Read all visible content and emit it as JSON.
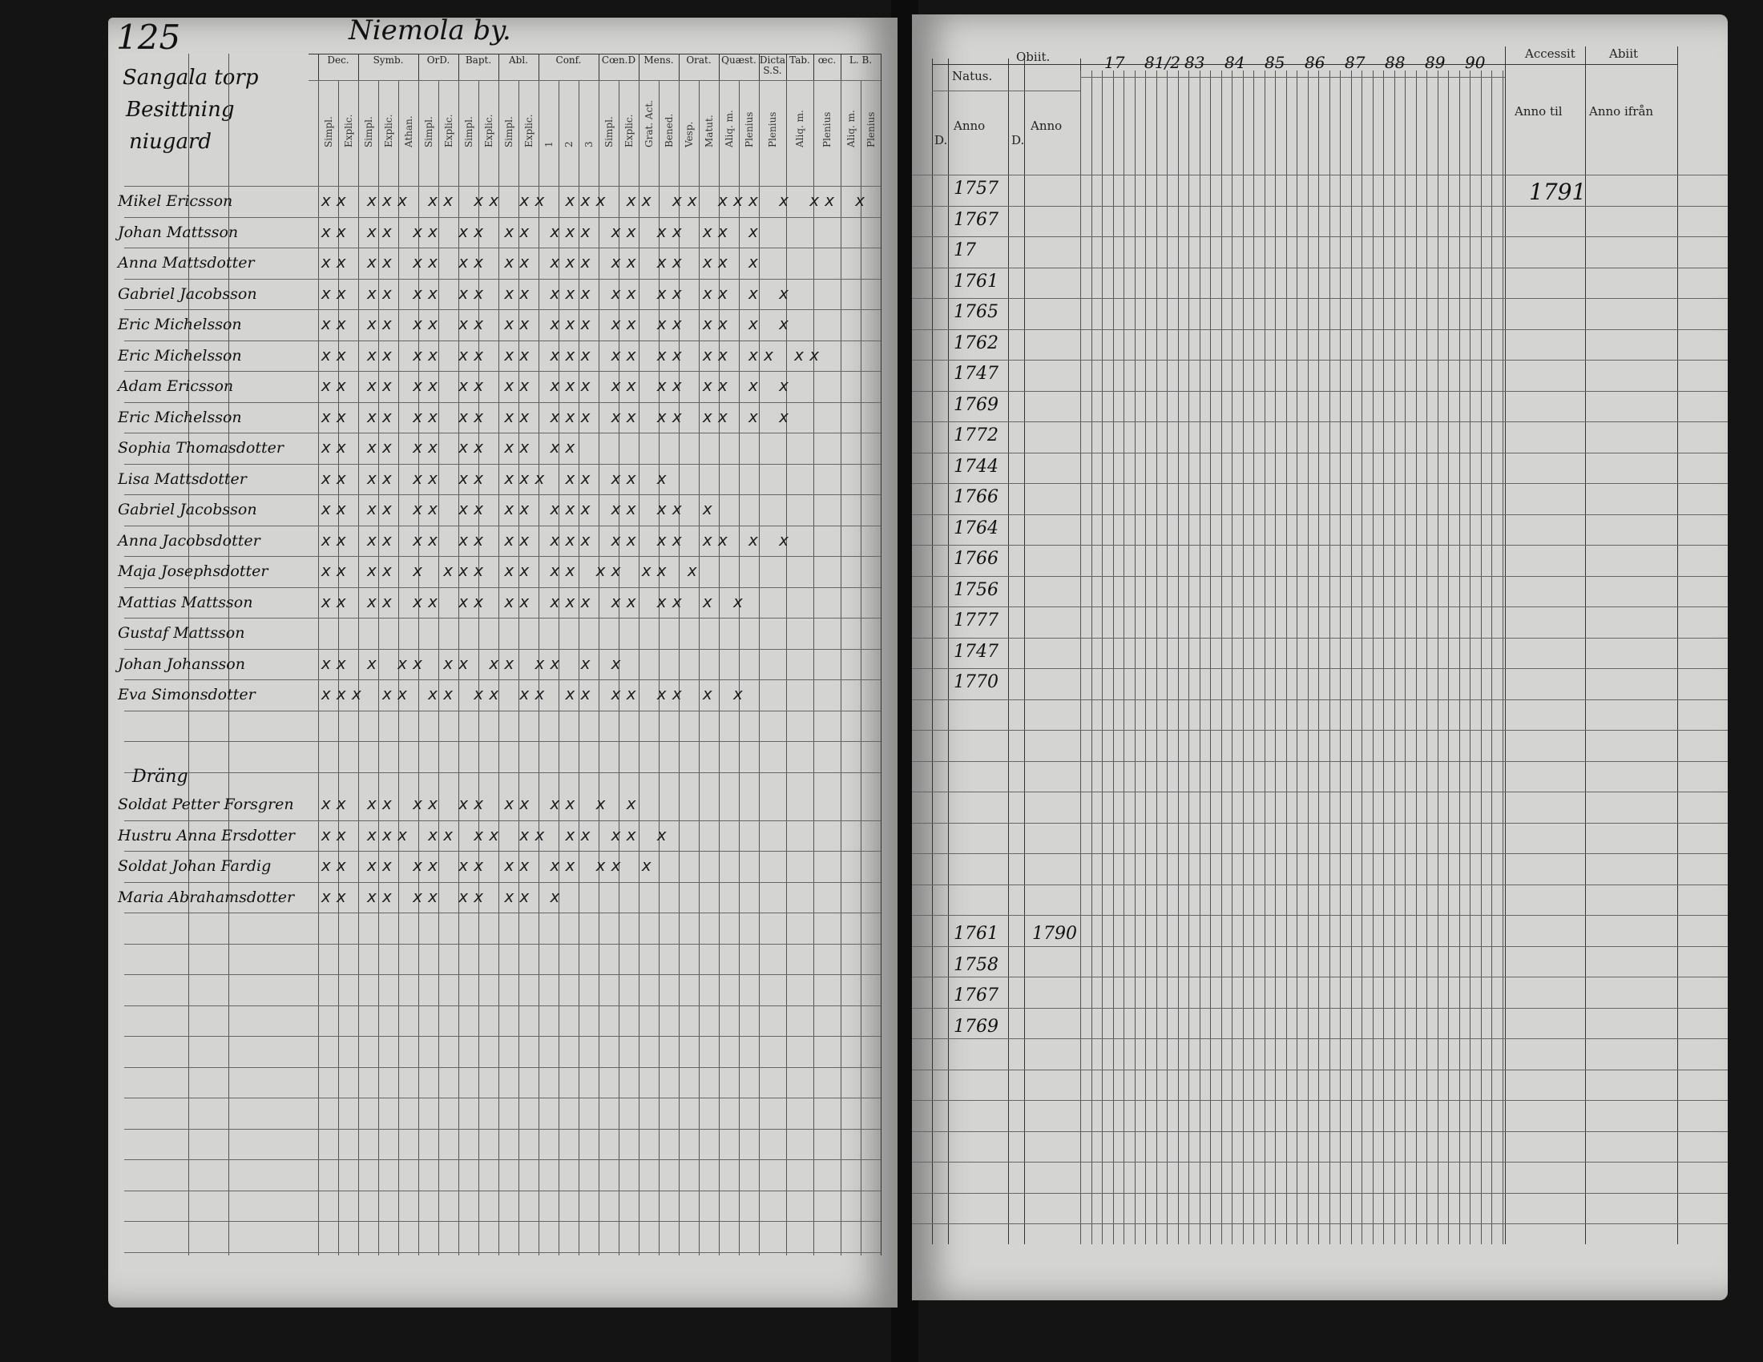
{
  "left_page": {
    "page_number": "125",
    "village": "Niemola by.",
    "heading_lines": [
      "Sangala torp",
      "Besittning",
      "niugard"
    ],
    "column_groups": [
      {
        "label": "Dec.",
        "subs": [
          "Simpl.",
          "Explic."
        ]
      },
      {
        "label": "Symb.",
        "subs": [
          "Simpl.",
          "Explic.",
          "Athan."
        ]
      },
      {
        "label": "OrD.",
        "subs": [
          "Simpl.",
          "Explic."
        ]
      },
      {
        "label": "Bapt.",
        "subs": [
          "Simpl.",
          "Explic."
        ]
      },
      {
        "label": "Abl.",
        "subs": [
          "Simpl.",
          "Explic."
        ]
      },
      {
        "label": "Conf.",
        "subs": [
          "1",
          "2",
          "3"
        ]
      },
      {
        "label": "Cœn.D",
        "subs": [
          "Simpl.",
          "Explic."
        ]
      },
      {
        "label": "Mens.",
        "subs": [
          "Grat. Act.",
          "Bened."
        ]
      },
      {
        "label": "Orat.",
        "subs": [
          "Vesp.",
          "Matut."
        ]
      },
      {
        "label": "Quæst.",
        "subs": [
          "Aliq. m.",
          "Plenius"
        ]
      },
      {
        "label": "Dicta S.S.",
        "subs": [
          "Plenius"
        ]
      },
      {
        "label": "Tab.",
        "subs": [
          "Aliq. m."
        ]
      },
      {
        "label": "œc.",
        "subs": [
          "Plenius"
        ]
      },
      {
        "label": "L. B.",
        "subs": [
          "Aliq. m.",
          "Plenius"
        ]
      }
    ],
    "rows": [
      {
        "name": "Mikel Ericsson",
        "marks": "xx xxx xx xx xx xxx xx xx xxx x xx x"
      },
      {
        "name": "Johan Mattsson",
        "marks": "xx xx xx xx xx xxx xx xx xx x"
      },
      {
        "name": "Anna Mattsdotter",
        "marks": "xx xx xx xx xx xxx xx xx xx x"
      },
      {
        "name": "Gabriel Jacobsson",
        "marks": "xx xx xx xx xx xxx xx xx xx x x"
      },
      {
        "name": "Eric Michelsson",
        "marks": "xx xx xx xx xx xxx xx xx xx x x"
      },
      {
        "name": "Eric Michelsson",
        "marks": "xx xx xx xx xx xxx xx xx xx xx xx"
      },
      {
        "name": "Adam Ericsson",
        "marks": "xx xx xx xx xx xxx xx xx xx x x"
      },
      {
        "name": "Eric Michelsson",
        "marks": "xx xx xx xx xx xxx xx xx xx x x"
      },
      {
        "name": "Sophia Thomasdotter",
        "marks": "xx xx xx xx xx xx"
      },
      {
        "name": "Lisa Mattsdotter",
        "marks": "xx xx xx xx xxx xx xx x"
      },
      {
        "name": "Gabriel Jacobsson",
        "marks": "xx xx xx xx xx xxx xx xx x"
      },
      {
        "name": "Anna Jacobsdotter",
        "marks": "xx xx xx xx xx xxx xx xx xx x x"
      },
      {
        "name": "Maja Josephsdotter",
        "marks": "xx xx x xxx xx xx xx xx x"
      },
      {
        "name": "Mattias Mattsson",
        "marks": "xx xx xx xx xx xxx xx xx x x"
      },
      {
        "name": "Gustaf Mattsson",
        "marks": ""
      },
      {
        "name": "Johan Johansson",
        "marks": "xx x xx xx xx xx x x"
      },
      {
        "name": "Eva Simonsdotter",
        "marks": "xxx xx xx xx xx xx xx xx x x"
      }
    ],
    "section_title": "Dräng",
    "rows2": [
      {
        "name": "Soldat Petter Forsgren",
        "marks": "xx xx xx xx xx xx x x"
      },
      {
        "name": "Hustru Anna Ersdotter",
        "marks": "xx xxx xx xx xx xx xx x"
      },
      {
        "name": "Soldat Johan Fardig",
        "marks": "xx xx xx xx xx xx xx x"
      },
      {
        "name": "Maria Abrahamsdotter",
        "marks": "xx xx xx xx xx x"
      }
    ]
  },
  "right_page": {
    "headers": {
      "natus": "Natus.",
      "obiit": "Obiit.",
      "d": "D.",
      "anno": "Anno",
      "years": [
        "17",
        "81/2",
        "83",
        "84",
        "85",
        "86",
        "87",
        "88",
        "89",
        "90"
      ],
      "accessit": "Accessit",
      "abiit": "Abiit",
      "anno_til": "Anno til",
      "anno_ifran": "Anno ifrån"
    },
    "birth_years": [
      "1757",
      "1767",
      "17",
      "1761",
      "1765",
      "1762",
      "1747",
      "1769",
      "1772",
      "1744",
      "1766",
      "1764",
      "1766",
      "1756",
      "1777",
      "1747",
      "1770"
    ],
    "accessit_year": "1791",
    "birth_years2": [
      "1761",
      "1758",
      "1767",
      "1769"
    ],
    "obiit_year2": "1790"
  }
}
